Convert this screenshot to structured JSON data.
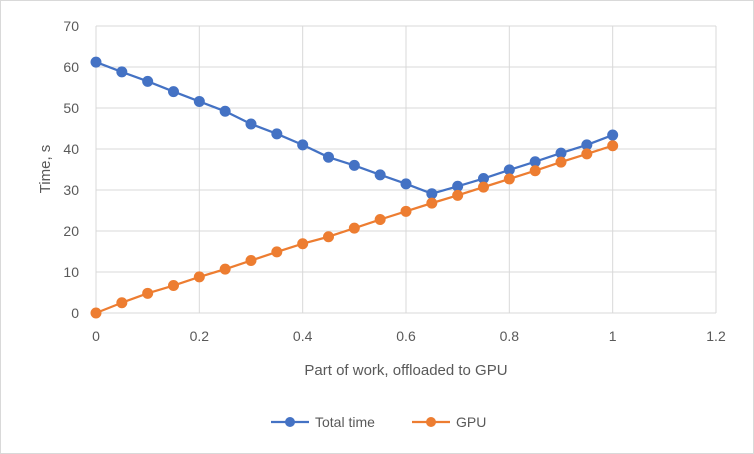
{
  "chart_data": {
    "type": "line",
    "xlabel": "Part of work, offloaded to GPU",
    "ylabel": "Time, s",
    "xlim": [
      0,
      1.2
    ],
    "ylim": [
      0,
      70
    ],
    "x_ticks": [
      "0",
      "0.2",
      "0.4",
      "0.6",
      "0.8",
      "1",
      "1.2"
    ],
    "y_ticks": [
      "0",
      "10",
      "20",
      "30",
      "40",
      "50",
      "60",
      "70"
    ],
    "grid": true,
    "legend_position": "bottom",
    "series": [
      {
        "name": "Total time",
        "color": "#4472c4",
        "x": [
          0,
          0.05,
          0.1,
          0.15,
          0.2,
          0.25,
          0.3,
          0.35,
          0.4,
          0.45,
          0.5,
          0.55,
          0.6,
          0.65,
          0.7,
          0.75,
          0.8,
          0.85,
          0.9,
          0.95,
          1
        ],
        "values": [
          61.2,
          58.8,
          56.5,
          54.0,
          51.6,
          49.2,
          46.1,
          43.7,
          41.0,
          38.0,
          36.0,
          33.7,
          31.5,
          29.1,
          30.9,
          32.8,
          34.9,
          36.9,
          39.0,
          41.0,
          43.4
        ]
      },
      {
        "name": "GPU",
        "color": "#ed7d31",
        "x": [
          0,
          0.05,
          0.1,
          0.15,
          0.2,
          0.25,
          0.3,
          0.35,
          0.4,
          0.45,
          0.5,
          0.55,
          0.6,
          0.65,
          0.7,
          0.75,
          0.8,
          0.85,
          0.9,
          0.95,
          1
        ],
        "values": [
          0,
          2.5,
          4.8,
          6.7,
          8.8,
          10.7,
          12.8,
          14.9,
          16.9,
          18.6,
          20.7,
          22.8,
          24.8,
          26.8,
          28.7,
          30.7,
          32.7,
          34.7,
          36.8,
          38.8,
          40.8
        ]
      }
    ]
  }
}
